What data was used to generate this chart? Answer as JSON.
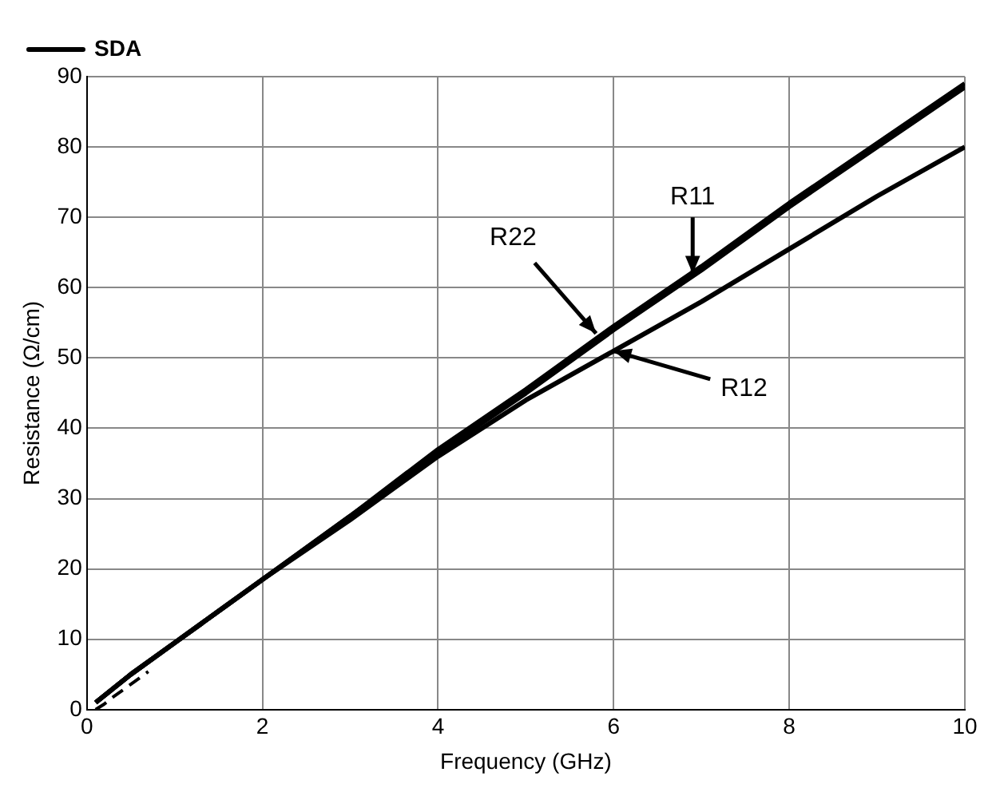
{
  "chart_data": {
    "type": "line",
    "xlabel": "Frequency (GHz)",
    "ylabel": "Resistance (Ω/cm)",
    "x": [
      0.1,
      0.5,
      1,
      2,
      3,
      4,
      5,
      6,
      7,
      8,
      9,
      10
    ],
    "series": [
      {
        "name": "SDA",
        "color": "#000000",
        "line_style": "solid",
        "values": [
          1,
          5,
          9.5,
          18.5,
          27.5,
          37,
          45.5,
          54.5,
          63,
          72,
          80.5,
          89
        ]
      },
      {
        "color": "#000000",
        "line_style": "solid",
        "values": [
          1,
          5,
          9.5,
          18.5,
          27.5,
          36.5,
          45,
          54,
          62.5,
          71.5,
          80,
          88.5
        ]
      },
      {
        "color": "#000000",
        "line_style": "solid",
        "values": [
          1,
          5,
          9.5,
          18.5,
          27,
          36,
          44,
          51,
          58,
          65.5,
          73,
          80
        ]
      },
      {
        "color": "#000000",
        "line_style": "dashed",
        "x": [
          0.1,
          0.2,
          0.3,
          0.5,
          0.7
        ],
        "values": [
          0,
          0.8,
          1.8,
          3.6,
          5.4
        ]
      }
    ],
    "xlim": [
      0,
      10
    ],
    "xticks": [
      0,
      2,
      4,
      6,
      8,
      10
    ],
    "ylim": [
      0,
      90
    ],
    "yticks": [
      0,
      10,
      20,
      30,
      40,
      50,
      60,
      70,
      80,
      90
    ],
    "grid": true,
    "legend": "top left",
    "marker": "none",
    "annotations": [
      {
        "text": "R11",
        "x": 6.9,
        "y": 62
      },
      {
        "text": "R22",
        "x": 5.8,
        "y": 53.5
      },
      {
        "text": "R12",
        "x": 6,
        "y": 51
      }
    ]
  }
}
